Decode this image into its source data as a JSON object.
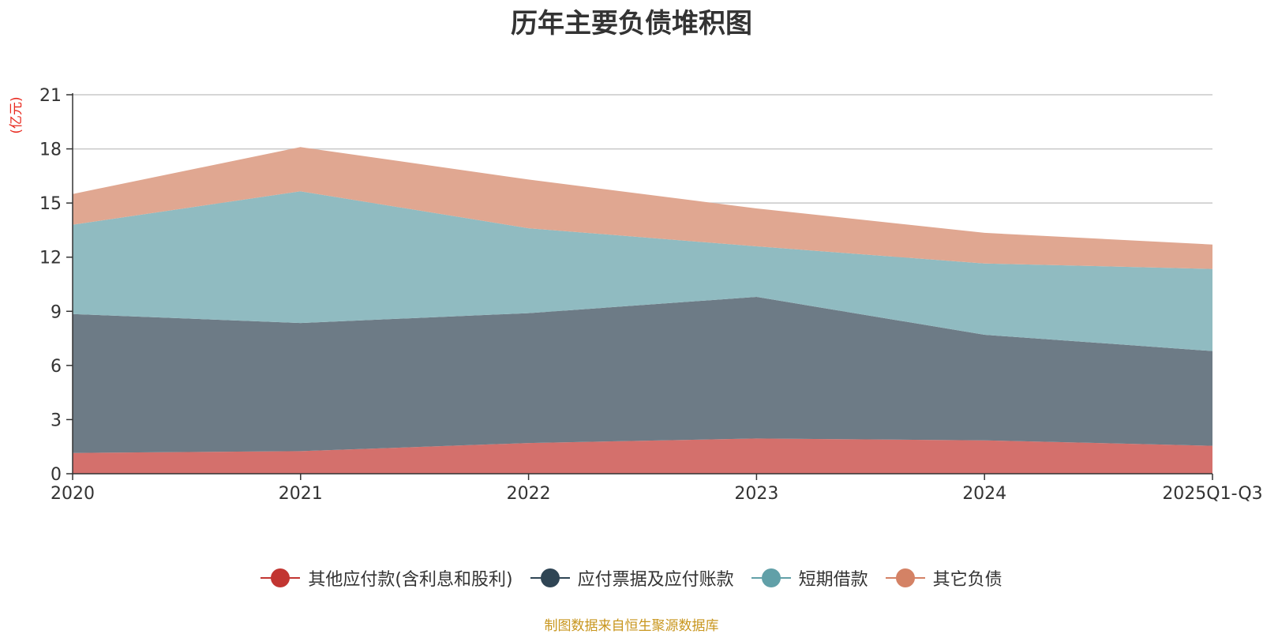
{
  "chart_data": {
    "type": "area",
    "stacked": true,
    "title": "历年主要负债堆积图",
    "ylabel": "(亿元)",
    "xlabel": "",
    "categories": [
      "2020",
      "2021",
      "2022",
      "2023",
      "2024",
      "2025Q1-Q3"
    ],
    "ylim": [
      0,
      21
    ],
    "yticks": [
      0,
      3,
      6,
      9,
      12,
      15,
      18,
      21
    ],
    "grid": true,
    "legend_position": "bottom",
    "series": [
      {
        "name": "其他应付款(含利息和股利)",
        "color": "#c23531",
        "fill": "#d4706c",
        "values": [
          1.15,
          1.25,
          1.7,
          1.95,
          1.85,
          1.55
        ]
      },
      {
        "name": "应付票据及应付账款",
        "color": "#2f4554",
        "fill": "#6d7b86",
        "values": [
          7.7,
          7.1,
          7.2,
          7.85,
          5.85,
          5.25
        ]
      },
      {
        "name": "短期借款",
        "color": "#61a0a8",
        "fill": "#90bbc1",
        "values": [
          4.95,
          7.3,
          4.7,
          2.8,
          3.95,
          4.55
        ]
      },
      {
        "name": "其它负债",
        "color": "#d48265",
        "fill": "#e0a791",
        "values": [
          1.7,
          2.45,
          2.7,
          2.1,
          1.7,
          1.35
        ]
      }
    ]
  },
  "footer": {
    "source": "制图数据来自恒生聚源数据库"
  }
}
